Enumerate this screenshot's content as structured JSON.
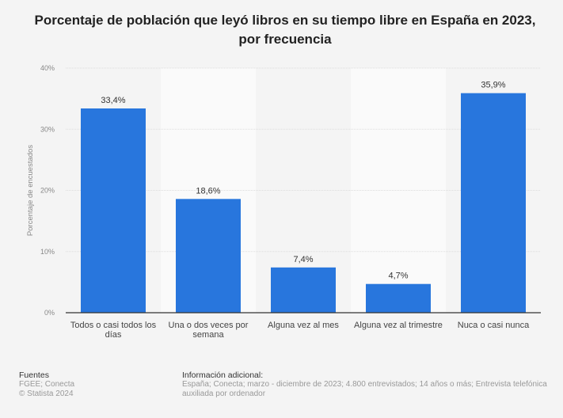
{
  "chart_data": {
    "type": "bar",
    "title": "Porcentaje de población que leyó libros en su tiempo libre en España en 2023, por frecuencia",
    "ylabel": "Porcentaje de encuestados",
    "xlabel": "",
    "ylim": [
      0,
      40
    ],
    "yticks": [
      "0%",
      "10%",
      "20%",
      "30%",
      "40%"
    ],
    "categories": [
      [
        "Todos o casi todos los",
        "días"
      ],
      [
        "Una o dos veces por",
        "semana"
      ],
      [
        "Alguna vez al mes"
      ],
      [
        "Alguna vez al trimestre"
      ],
      [
        "Nuca o casi nunca"
      ]
    ],
    "values": [
      33.4,
      18.6,
      7.4,
      4.7,
      35.9
    ],
    "data_labels": [
      "33,4%",
      "18,6%",
      "7,4%",
      "4,7%",
      "35,9%"
    ],
    "grid": true,
    "bar_color": "#2876dd"
  },
  "footer": {
    "sources_title": "Fuentes",
    "sources": "FGEE; Conecta",
    "copyright": "© Statista 2024",
    "info_title": "Información adicional:",
    "info": "España; Conecta; marzo - diciembre de 2023; 4.800 entrevistados; 14 años o más; Entrevista telefónica auxiliada por ordenador"
  }
}
